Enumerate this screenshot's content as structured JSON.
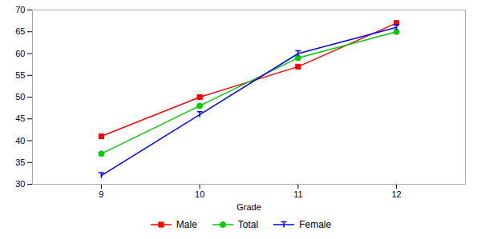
{
  "chart_data": {
    "type": "line",
    "xlabel": "Grade",
    "x": [
      9,
      10,
      11,
      12
    ],
    "series": [
      {
        "name": "Male",
        "color": "#ff0000",
        "marker": "square",
        "line_style": "solid",
        "values": [
          41,
          50,
          57,
          67
        ]
      },
      {
        "name": "Total",
        "color": "#00cc00",
        "marker": "circle",
        "line_style": "solid",
        "values": [
          37,
          48,
          59,
          65
        ]
      },
      {
        "name": "Female",
        "color": "#0000ff",
        "marker": "tee",
        "line_style": "solid",
        "values": [
          32,
          46,
          60,
          66
        ]
      }
    ],
    "xlim": [
      8.3,
      12.7
    ],
    "xticks": [
      9,
      10,
      11,
      12
    ],
    "ylim": [
      30,
      70
    ],
    "yticks": [
      30,
      35,
      40,
      45,
      50,
      55,
      60,
      65,
      70
    ],
    "grid": false,
    "legend": "bottom"
  }
}
